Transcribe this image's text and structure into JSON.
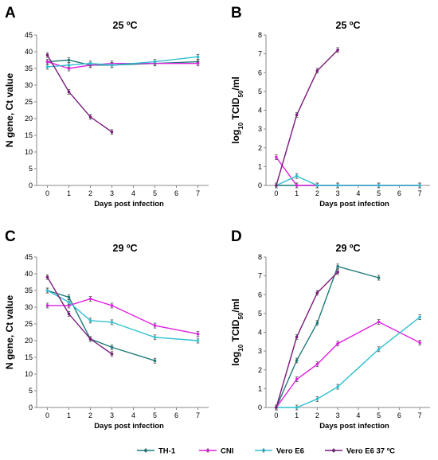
{
  "series_styles": [
    {
      "name": "TH-1",
      "color": "#1f7a7a"
    },
    {
      "name": "CNI",
      "color": "#e020e0"
    },
    {
      "name": "Vero E6",
      "color": "#30c0d0"
    },
    {
      "name": "Vero E6 37 ºC",
      "color": "#7a1a7a"
    }
  ],
  "chart_data": [
    {
      "type": "line",
      "panel": "A",
      "title": "25 ºC",
      "xlabel": "Days post infection",
      "ylabel": "N gene, Ct value",
      "xlim": [
        -0.5,
        7.5
      ],
      "ylim": [
        0,
        45
      ],
      "xticks": [
        "0",
        "1",
        "2",
        "3",
        "4",
        "5",
        "6",
        "7"
      ],
      "yticks": [
        "0",
        "5",
        "10",
        "15",
        "20",
        "25",
        "30",
        "35",
        "40",
        "45"
      ],
      "series": [
        {
          "name": "TH-1",
          "x": [
            0,
            1,
            2,
            3,
            5,
            7
          ],
          "y": [
            37,
            37.5,
            36,
            36,
            36.5,
            37
          ]
        },
        {
          "name": "CNI",
          "x": [
            0,
            1,
            2,
            3,
            5,
            7
          ],
          "y": [
            37,
            35,
            36,
            36.5,
            36.5,
            36.5
          ]
        },
        {
          "name": "Vero E6",
          "x": [
            0,
            1,
            2,
            3,
            5,
            7
          ],
          "y": [
            35.5,
            36,
            36.5,
            36,
            37,
            38.5
          ]
        },
        {
          "name": "Vero E6 37 ºC",
          "x": [
            0,
            1,
            2,
            3
          ],
          "y": [
            39,
            28,
            20.5,
            16
          ]
        }
      ]
    },
    {
      "type": "line",
      "panel": "B",
      "title": "25 ºC",
      "xlabel": "Days post infection",
      "ylabel": "log10 TCID50/ml",
      "xlim": [
        -0.5,
        7.5
      ],
      "ylim": [
        0,
        8
      ],
      "xticks": [
        "0",
        "1",
        "2",
        "3",
        "4",
        "5",
        "6",
        "7"
      ],
      "yticks": [
        "0",
        "1",
        "2",
        "3",
        "4",
        "5",
        "6",
        "7",
        "8"
      ],
      "series": [
        {
          "name": "TH-1",
          "x": [
            0,
            1,
            2,
            3,
            5,
            7
          ],
          "y": [
            0,
            0,
            0,
            0,
            0,
            0
          ]
        },
        {
          "name": "CNI",
          "x": [
            0,
            1,
            2,
            3,
            5,
            7
          ],
          "y": [
            1.5,
            0,
            0,
            0,
            0,
            0
          ]
        },
        {
          "name": "Vero E6",
          "x": [
            0,
            1,
            2,
            3,
            5,
            7
          ],
          "y": [
            0,
            0.5,
            0,
            0,
            0,
            0
          ]
        },
        {
          "name": "Vero E6 37 ºC",
          "x": [
            0,
            1,
            2,
            3
          ],
          "y": [
            0,
            3.75,
            6.1,
            7.2
          ]
        }
      ]
    },
    {
      "type": "line",
      "panel": "C",
      "title": "29 ºC",
      "xlabel": "Days post infection",
      "ylabel": "N gene, Ct value",
      "xlim": [
        -0.5,
        7.5
      ],
      "ylim": [
        0,
        45
      ],
      "xticks": [
        "0",
        "1",
        "2",
        "3",
        "4",
        "5",
        "6",
        "7"
      ],
      "yticks": [
        "0",
        "5",
        "10",
        "15",
        "20",
        "25",
        "30",
        "35",
        "40",
        "45"
      ],
      "series": [
        {
          "name": "TH-1",
          "x": [
            0,
            1,
            2,
            3,
            5
          ],
          "y": [
            35,
            33,
            20.5,
            18,
            14
          ]
        },
        {
          "name": "CNI",
          "x": [
            0,
            1,
            2,
            3,
            5,
            7
          ],
          "y": [
            30.5,
            30.5,
            32.5,
            30.5,
            24.5,
            22
          ]
        },
        {
          "name": "Vero E6",
          "x": [
            0,
            1,
            2,
            3,
            5,
            7
          ],
          "y": [
            35,
            31.5,
            26,
            25.5,
            21,
            20
          ]
        },
        {
          "name": "Vero E6 37 ºC",
          "x": [
            0,
            1,
            2,
            3
          ],
          "y": [
            39,
            28,
            20.5,
            16
          ]
        }
      ]
    },
    {
      "type": "line",
      "panel": "D",
      "title": "29 ºC",
      "xlabel": "Days post infection",
      "ylabel": "log10 TCID50/ml",
      "xlim": [
        -0.5,
        7.5
      ],
      "ylim": [
        0,
        8
      ],
      "xticks": [
        "0",
        "1",
        "2",
        "3",
        "4",
        "5",
        "6",
        "7"
      ],
      "yticks": [
        "0",
        "1",
        "2",
        "3",
        "4",
        "5",
        "6",
        "7",
        "8"
      ],
      "series": [
        {
          "name": "TH-1",
          "x": [
            0,
            1,
            2,
            3,
            5
          ],
          "y": [
            0,
            2.5,
            4.5,
            7.5,
            6.9
          ]
        },
        {
          "name": "CNI",
          "x": [
            0,
            1,
            2,
            3,
            5,
            7
          ],
          "y": [
            0,
            1.5,
            2.3,
            3.4,
            4.55,
            3.45
          ]
        },
        {
          "name": "Vero E6",
          "x": [
            0,
            1,
            2,
            3,
            5,
            7
          ],
          "y": [
            0,
            0,
            0.45,
            1.1,
            3.1,
            4.8
          ]
        },
        {
          "name": "Vero E6 37 ºC",
          "x": [
            0,
            1,
            2,
            3
          ],
          "y": [
            0,
            3.75,
            6.1,
            7.2
          ]
        }
      ]
    }
  ]
}
